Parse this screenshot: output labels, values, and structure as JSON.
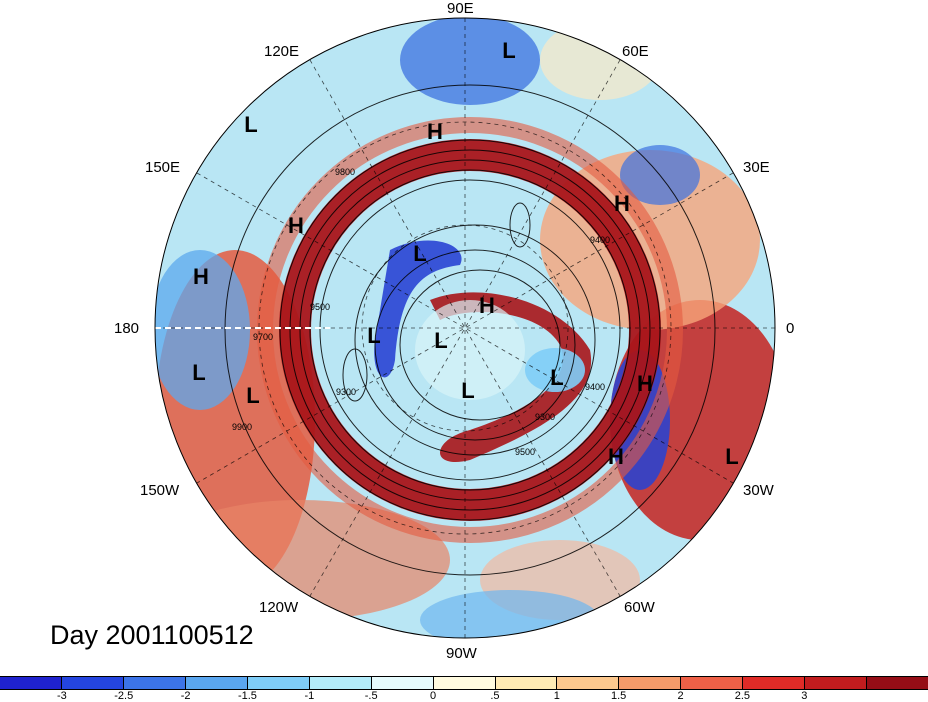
{
  "title": "Day 2001100512",
  "longitude_labels": {
    "n90e": "90E",
    "n120e": "120E",
    "n60e": "60E",
    "n150e": "150E",
    "n30e": "30E",
    "n180": "180",
    "n0": "0",
    "n150w": "150W",
    "n30w": "30W",
    "n120w": "120W",
    "n60w": "60W",
    "n90w": "90W"
  },
  "pressure_systems": [
    {
      "label": "L",
      "kind": "low"
    },
    {
      "label": "L",
      "kind": "low"
    },
    {
      "label": "H",
      "kind": "high"
    },
    {
      "label": "H",
      "kind": "high"
    },
    {
      "label": "H",
      "kind": "high"
    },
    {
      "label": "H",
      "kind": "high"
    },
    {
      "label": "L",
      "kind": "low"
    },
    {
      "label": "H",
      "kind": "high"
    },
    {
      "label": "L",
      "kind": "low"
    },
    {
      "label": "L",
      "kind": "low"
    },
    {
      "label": "L",
      "kind": "low"
    },
    {
      "label": "L",
      "kind": "low"
    },
    {
      "label": "L",
      "kind": "low"
    },
    {
      "label": "L",
      "kind": "low"
    },
    {
      "label": "H",
      "kind": "high"
    },
    {
      "label": "H",
      "kind": "high"
    },
    {
      "label": "L",
      "kind": "low"
    }
  ],
  "contour_labels": [
    "9500",
    "9300",
    "9400",
    "9500",
    "9300",
    "9400",
    "9700",
    "9900",
    "9800"
  ],
  "colorbar": {
    "colors": [
      "#1f22cf",
      "#2445e0",
      "#3c74e8",
      "#5aa6ef",
      "#7fcdf7",
      "#b3ecfa",
      "#e6fbfd",
      "#fffbe0",
      "#feeab4",
      "#fcc88e",
      "#f59b6a",
      "#ee6047",
      "#e02b27",
      "#c11c1e",
      "#950d16"
    ],
    "ticks": [
      "-3",
      "-2.5",
      "-2",
      "-1.5",
      "-1",
      "-.5",
      "0",
      ".5",
      "1",
      "1.5",
      "2",
      "2.5",
      "3"
    ]
  }
}
